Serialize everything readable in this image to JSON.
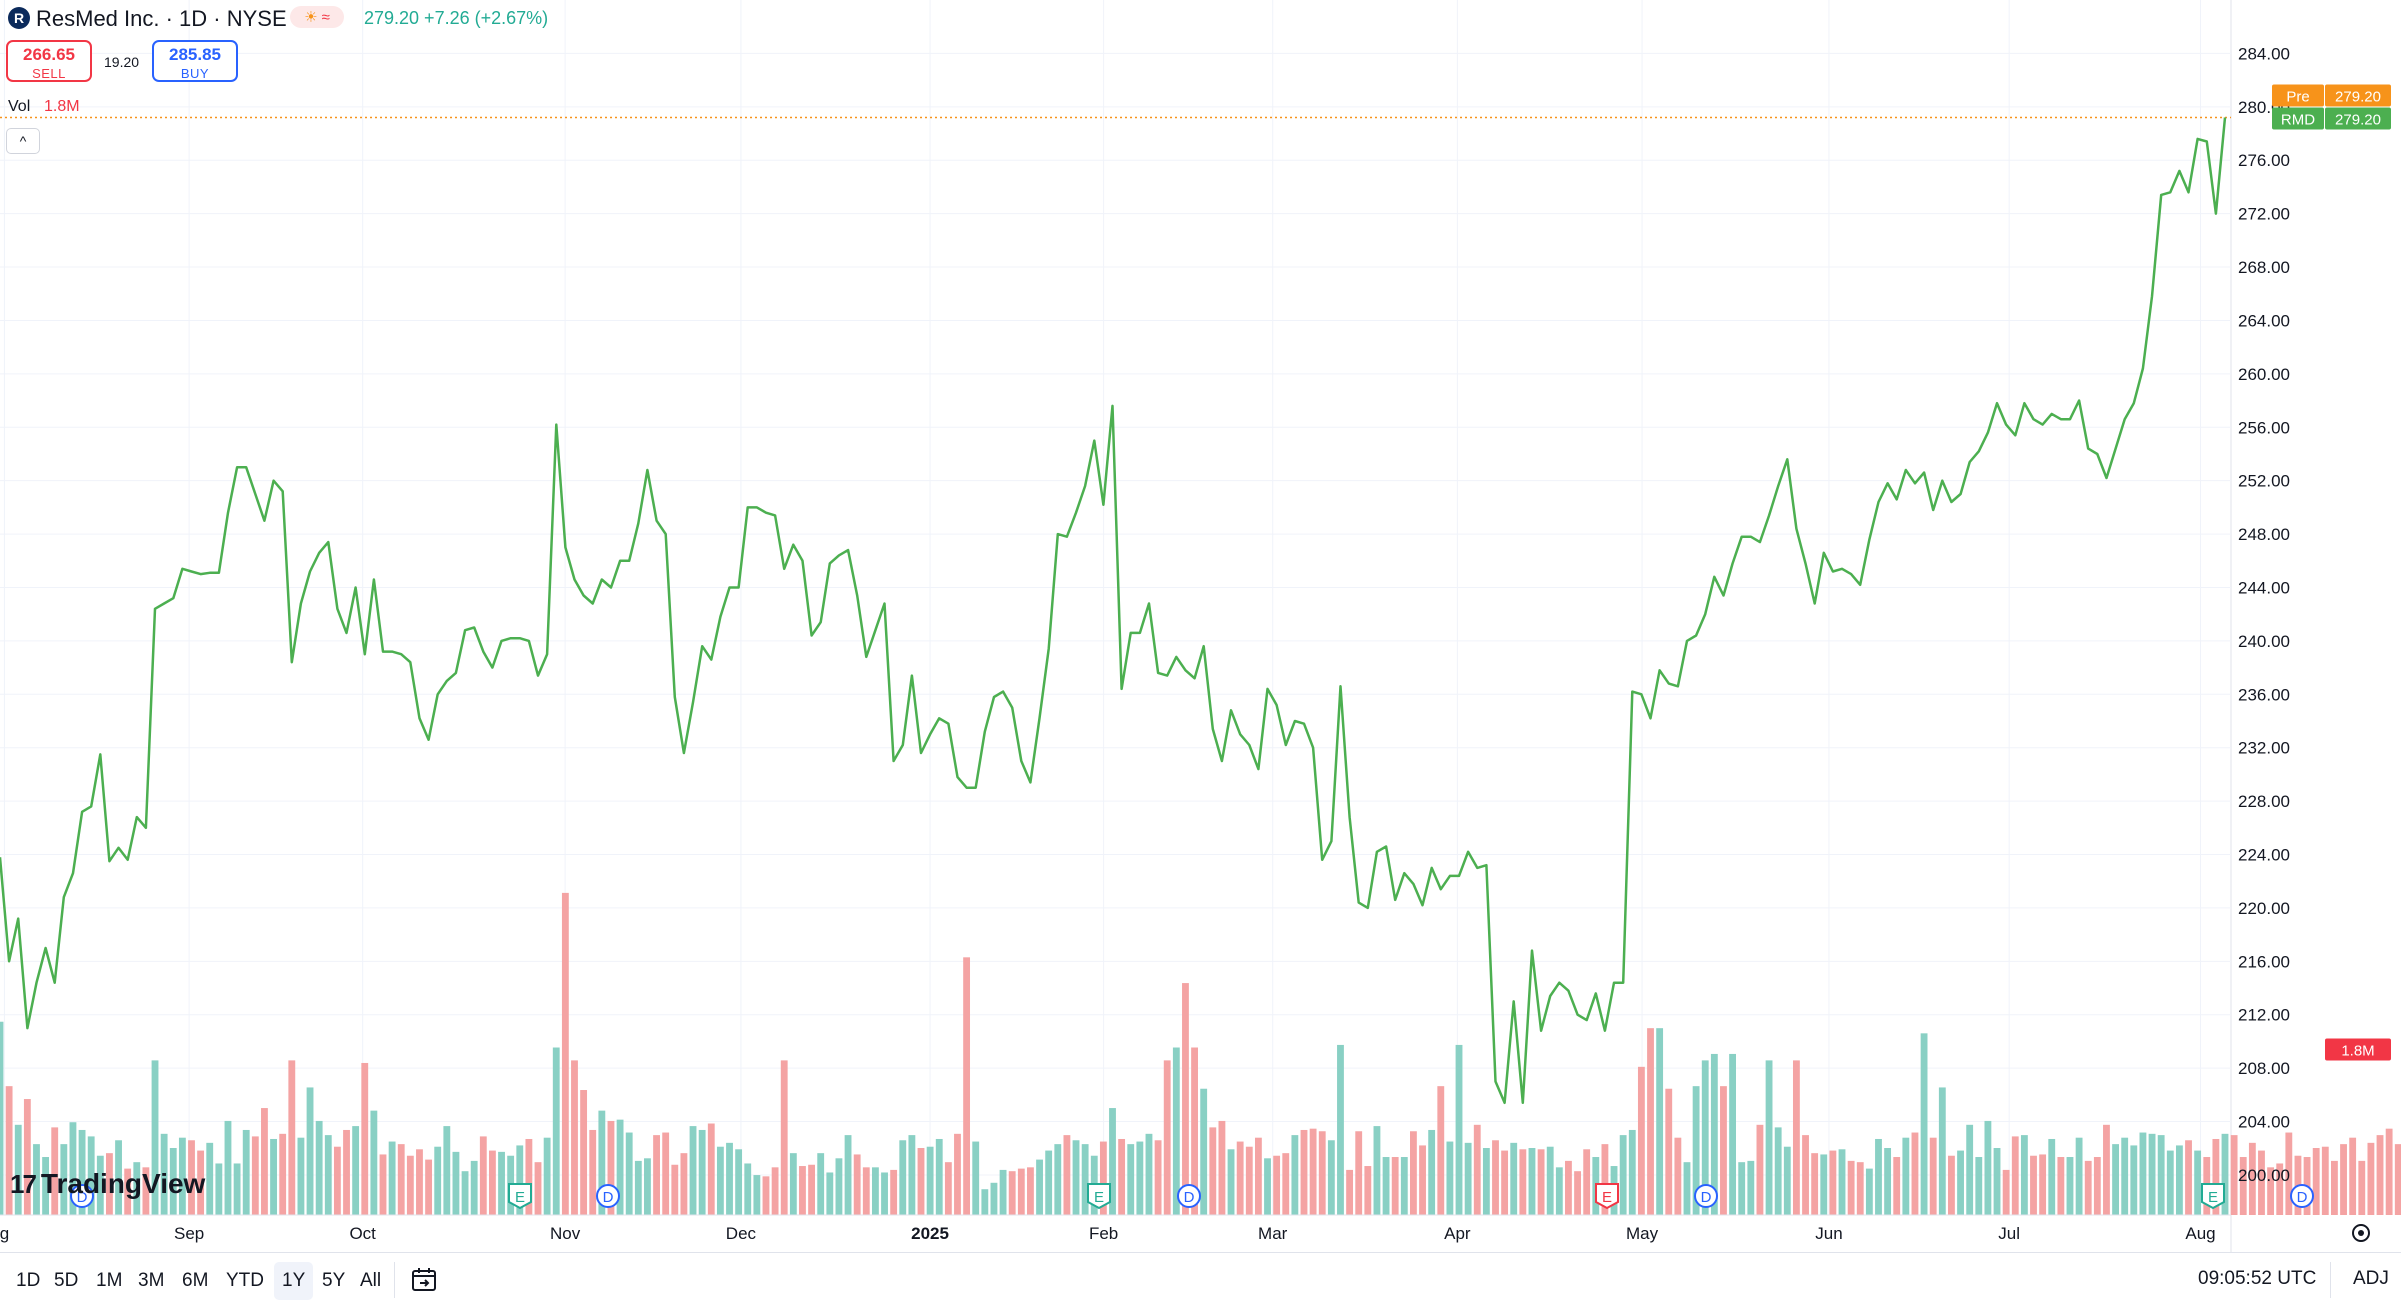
{
  "header": {
    "logo_letter": "R",
    "title": "ResMed Inc. · 1D · NYSE",
    "badge_sun": "☀",
    "badge_wave": "≈",
    "price_text": "279.20 +7.26 (+2.67%)",
    "sell_price": "266.65",
    "sell_label": "SELL",
    "spread": "19.20",
    "buy_price": "285.85",
    "buy_label": "BUY",
    "vol_label": "Vol",
    "vol_value": "1.8M",
    "collapse_glyph": "^"
  },
  "logo_text": "TradingView",
  "logo_mark": "17",
  "bottom_bar": {
    "ranges": [
      "1D",
      "5D",
      "1M",
      "3M",
      "6M",
      "YTD",
      "1Y",
      "5Y",
      "All"
    ],
    "active_range": "1Y",
    "time": "09:05:52 UTC",
    "adj_label": "ADJ"
  },
  "colors": {
    "line": "#4caf50",
    "up_vol": "#89d0c4",
    "down_vol": "#f4a3a3",
    "pre_badge": "#f7931a",
    "rmd_badge": "#4caf50",
    "vol_badge": "#f23645",
    "earnings": "#22ab94",
    "dividend": "#2962ff"
  },
  "chart_data": {
    "type": "line",
    "title": "ResMed Inc. · 1D · NYSE",
    "ylim": [
      197,
      288
    ],
    "y_ticks": [
      "200.00",
      "204.00",
      "208.00",
      "212.00",
      "216.00",
      "220.00",
      "224.00",
      "228.00",
      "232.00",
      "236.00",
      "240.00",
      "244.00",
      "248.00",
      "252.00",
      "256.00",
      "260.00",
      "264.00",
      "268.00",
      "272.00",
      "276.00",
      "280.00",
      "284.00",
      "288.00"
    ],
    "x_ticks": [
      "g",
      "Sep",
      "Oct",
      "Nov",
      "Dec",
      "2025",
      "Feb",
      "Mar",
      "Apr",
      "May",
      "Jun",
      "Jul",
      "Aug"
    ],
    "grid": true,
    "series": [
      {
        "name": "RMD",
        "values": [
          223.8,
          216,
          219.2,
          211,
          214.4,
          217,
          214.4,
          220.8,
          222.6,
          227.2,
          227.6,
          231.5,
          223.5,
          224.5,
          223.6,
          226.8,
          226,
          242.4,
          242.8,
          243.2,
          245.4,
          245.2,
          245,
          245.1,
          245.1,
          249.6,
          253,
          253,
          251,
          249,
          252,
          251.2,
          238.4,
          242.8,
          245.2,
          246.6,
          247.4,
          242.4,
          240.6,
          244,
          239,
          244.6,
          239.2,
          239.2,
          239,
          238.4,
          234.2,
          232.6,
          236,
          237,
          237.6,
          240.8,
          241,
          239.2,
          238,
          240,
          240.2,
          240.2,
          240,
          237.4,
          239,
          256.2,
          247,
          244.6,
          243.4,
          242.8,
          244.6,
          244,
          246,
          246,
          248.8,
          252.8,
          249,
          248,
          235.8,
          231.6,
          235.4,
          239.6,
          238.6,
          241.8,
          244,
          244,
          250,
          250,
          249.6,
          249.4,
          245.4,
          247.2,
          246,
          240.4,
          241.4,
          245.8,
          246.4,
          246.8,
          243.4,
          238.8,
          240.8,
          242.8,
          231,
          232.2,
          237.4,
          231.6,
          233,
          234.2,
          233.8,
          229.8,
          229,
          229,
          233.2,
          235.8,
          236.2,
          235,
          231,
          229.4,
          234.2,
          239.4,
          248,
          247.8,
          249.6,
          251.6,
          255,
          250.2,
          257.6,
          236.4,
          240.6,
          240.6,
          242.8,
          237.6,
          237.4,
          238.8,
          237.8,
          237.2,
          239.6,
          233.4,
          231,
          234.8,
          233,
          232.2,
          230.4,
          236.4,
          235.2,
          232.2,
          234,
          233.8,
          232,
          223.6,
          225,
          236.6,
          226.8,
          220.4,
          220,
          224.2,
          224.6,
          220.6,
          222.6,
          221.8,
          220.2,
          223,
          221.4,
          222.4,
          222.4,
          224.2,
          223,
          223.2,
          207,
          205.4,
          213,
          205.4,
          216.8,
          210.8,
          213.4,
          214.4,
          213.8,
          212,
          211.6,
          213.6,
          210.8,
          214.4,
          214.4,
          236.2,
          236,
          234.2,
          237.8,
          236.8,
          236.6,
          240,
          240.4,
          242,
          244.8,
          243.4,
          245.8,
          247.8,
          247.8,
          247.4,
          249.4,
          251.6,
          253.6,
          248.4,
          245.8,
          242.8,
          246.6,
          245.2,
          245.4,
          245,
          244.2,
          247.6,
          250.4,
          251.8,
          250.6,
          252.8,
          251.8,
          252.6,
          249.8,
          252,
          250.4,
          251,
          253.4,
          254.2,
          255.6,
          257.8,
          256.2,
          255.4,
          257.8,
          256.6,
          256.2,
          257,
          256.6,
          256.6,
          258,
          254.4,
          254,
          252.2,
          254.4,
          256.6,
          257.8,
          260.4,
          265.8,
          273.4,
          273.6,
          275.2,
          273.6,
          277.6,
          277.4,
          272,
          279.2
        ]
      }
    ],
    "volume": {
      "name": "Vol",
      "values": [
        1.5,
        1.0,
        0.7,
        0.9,
        0.55,
        0.45,
        0.68,
        0.55,
        0.72,
        0.66,
        0.61,
        0.46,
        0.48,
        0.58,
        0.36,
        0.41,
        0.37,
        1.2,
        0.63,
        0.52,
        0.6,
        0.58,
        0.5,
        0.56,
        0.4,
        0.73,
        0.4,
        0.66,
        0.61,
        0.83,
        0.59,
        0.63,
        1.2,
        0.6,
        0.99,
        0.73,
        0.62,
        0.53,
        0.66,
        0.69,
        1.18,
        0.81,
        0.47,
        0.57,
        0.55,
        0.46,
        0.51,
        0.43,
        0.53,
        0.69,
        0.49,
        0.34,
        0.42,
        0.61,
        0.5,
        0.49,
        0.46,
        0.54,
        0.59,
        0.41,
        0.6,
        1.3,
        2.5,
        1.2,
        0.97,
        0.66,
        0.81,
        0.73,
        0.74,
        0.64,
        0.42,
        0.44,
        0.62,
        0.64,
        0.39,
        0.48,
        0.69,
        0.66,
        0.71,
        0.53,
        0.56,
        0.51,
        0.4,
        0.31,
        0.3,
        0.37,
        1.2,
        0.48,
        0.38,
        0.39,
        0.48,
        0.33,
        0.44,
        0.62,
        0.47,
        0.37,
        0.37,
        0.33,
        0.35,
        0.58,
        0.62,
        0.52,
        0.53,
        0.59,
        0.41,
        0.63,
        2.0,
        0.57,
        0.2,
        0.25,
        0.35,
        0.34,
        0.36,
        0.37,
        0.43,
        0.5,
        0.55,
        0.62,
        0.58,
        0.55,
        0.46,
        0.57,
        0.83,
        0.59,
        0.55,
        0.57,
        0.63,
        0.58,
        1.2,
        1.3,
        1.8,
        1.3,
        0.98,
        0.68,
        0.73,
        0.51,
        0.57,
        0.53,
        0.6,
        0.44,
        0.46,
        0.48,
        0.62,
        0.66,
        0.67,
        0.65,
        0.58,
        1.32,
        0.35,
        0.65,
        0.38,
        0.69,
        0.45,
        0.45,
        0.45,
        0.65,
        0.54,
        0.66,
        1.0,
        0.57,
        1.32,
        0.56,
        0.7,
        0.52,
        0.58,
        0.5,
        0.56,
        0.51,
        0.52,
        0.51,
        0.53,
        0.37,
        0.42,
        0.34,
        0.51,
        0.45,
        0.55,
        0.38,
        0.62,
        0.66,
        1.15,
        1.45,
        1.45,
        0.98,
        0.6,
        0.41,
        1.0,
        1.2,
        1.25,
        1.0,
        1.25,
        0.41,
        0.42,
        0.7,
        1.2,
        0.68,
        0.53,
        1.2,
        0.62,
        0.48,
        0.47,
        0.5,
        0.51,
        0.42,
        0.41,
        0.36,
        0.59,
        0.52,
        0.45,
        0.6,
        0.64,
        1.41,
        0.6,
        0.99,
        0.46,
        0.5,
        0.7,
        0.45,
        0.73,
        0.52,
        0.35,
        0.61,
        0.62,
        0.46,
        0.47,
        0.59,
        0.45,
        0.45,
        0.6,
        0.42,
        0.45,
        0.7,
        0.55,
        0.6,
        0.54,
        0.64,
        0.63,
        0.62,
        0.5,
        0.54,
        0.58,
        0.5,
        0.45,
        0.59,
        0.63,
        0.62,
        0.45,
        0.56,
        0.5,
        0.37,
        0.4,
        0.64,
        0.46,
        0.45,
        0.52,
        0.53,
        0.42,
        0.55,
        0.6,
        0.42,
        0.56,
        0.62,
        0.67,
        0.55,
        0.7,
        0.55,
        0.63,
        0.83,
        0.58,
        0.99,
        1.03,
        0.96,
        1.12
      ],
      "down_days_are_red": true
    },
    "last_price": 279.2,
    "pre_market": 279.2,
    "labels": {
      "pre": "Pre",
      "pre_value": "279.20",
      "rmd": "RMD",
      "rmd_value": "279.20",
      "vol_value": "1.8M"
    },
    "events": [
      {
        "type": "D",
        "label": "D",
        "near": "Aug (prev)"
      },
      {
        "type": "E",
        "label": "E",
        "near": "late Oct"
      },
      {
        "type": "D",
        "label": "D",
        "near": "early Nov"
      },
      {
        "type": "E",
        "label": "E",
        "near": "late Jan"
      },
      {
        "type": "D",
        "label": "D",
        "near": "mid Feb"
      },
      {
        "type": "E-red",
        "label": "E",
        "near": "late Apr"
      },
      {
        "type": "D",
        "label": "D",
        "near": "mid May"
      },
      {
        "type": "E",
        "label": "E",
        "near": "Aug"
      },
      {
        "type": "D",
        "label": "D",
        "near": "Aug"
      }
    ]
  }
}
